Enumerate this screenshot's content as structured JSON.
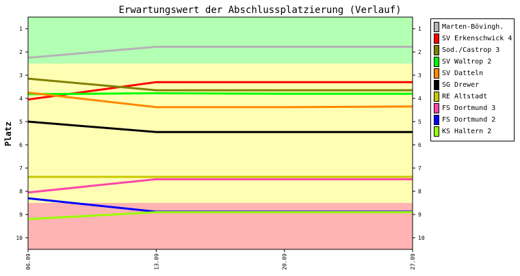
{
  "chart_data": {
    "type": "line",
    "title": "Erwartungswert der Abschlussplatzierung (Verlauf)",
    "xlabel": "",
    "ylabel": "Platz",
    "x": [
      "06.09",
      "13.09",
      "20.09",
      "27.09"
    ],
    "yticks": [
      "1",
      "2",
      "3",
      "4",
      "5",
      "6",
      "7",
      "8",
      "9",
      "10"
    ],
    "ylim": [
      0.5,
      10.5
    ],
    "y_inverted": true,
    "bands": [
      {
        "from": 0.5,
        "to": 2.5,
        "color": "#b3ffb3"
      },
      {
        "from": 2.5,
        "to": 8.5,
        "color": "#ffffb3"
      },
      {
        "from": 8.5,
        "to": 10.5,
        "color": "#ffb3b3"
      }
    ],
    "legend_position": "right",
    "series": [
      {
        "name": "Marten-Bövingh.",
        "color": "#b4b4b4",
        "values": [
          2.25,
          1.78,
          1.78,
          1.78
        ]
      },
      {
        "name": "SV Erkenschwick 4",
        "color": "#ff0000",
        "values": [
          4.05,
          3.3,
          3.3,
          3.3
        ]
      },
      {
        "name": "Sod./Castrop 3",
        "color": "#808000",
        "values": [
          3.15,
          3.65,
          3.65,
          3.65
        ]
      },
      {
        "name": "SV Waltrop 2",
        "color": "#00ff00",
        "values": [
          3.82,
          3.78,
          3.8,
          3.8
        ]
      },
      {
        "name": "SV Datteln",
        "color": "#ff8800",
        "values": [
          3.75,
          4.38,
          4.38,
          4.35
        ]
      },
      {
        "name": "SG Drewer",
        "color": "#000000",
        "values": [
          5.0,
          5.45,
          5.45,
          5.45
        ]
      },
      {
        "name": "RE Altstadt",
        "color": "#c8c800",
        "values": [
          7.38,
          7.38,
          7.38,
          7.38
        ]
      },
      {
        "name": "FS Dortmund 3",
        "color": "#ff44aa",
        "values": [
          8.05,
          7.48,
          7.48,
          7.48
        ]
      },
      {
        "name": "FS Dortmund 2",
        "color": "#0000ff",
        "values": [
          8.3,
          8.88,
          8.88,
          8.88
        ]
      },
      {
        "name": "KS Haltern 2",
        "color": "#99ff00",
        "values": [
          9.2,
          8.9,
          8.9,
          8.9
        ]
      }
    ]
  }
}
